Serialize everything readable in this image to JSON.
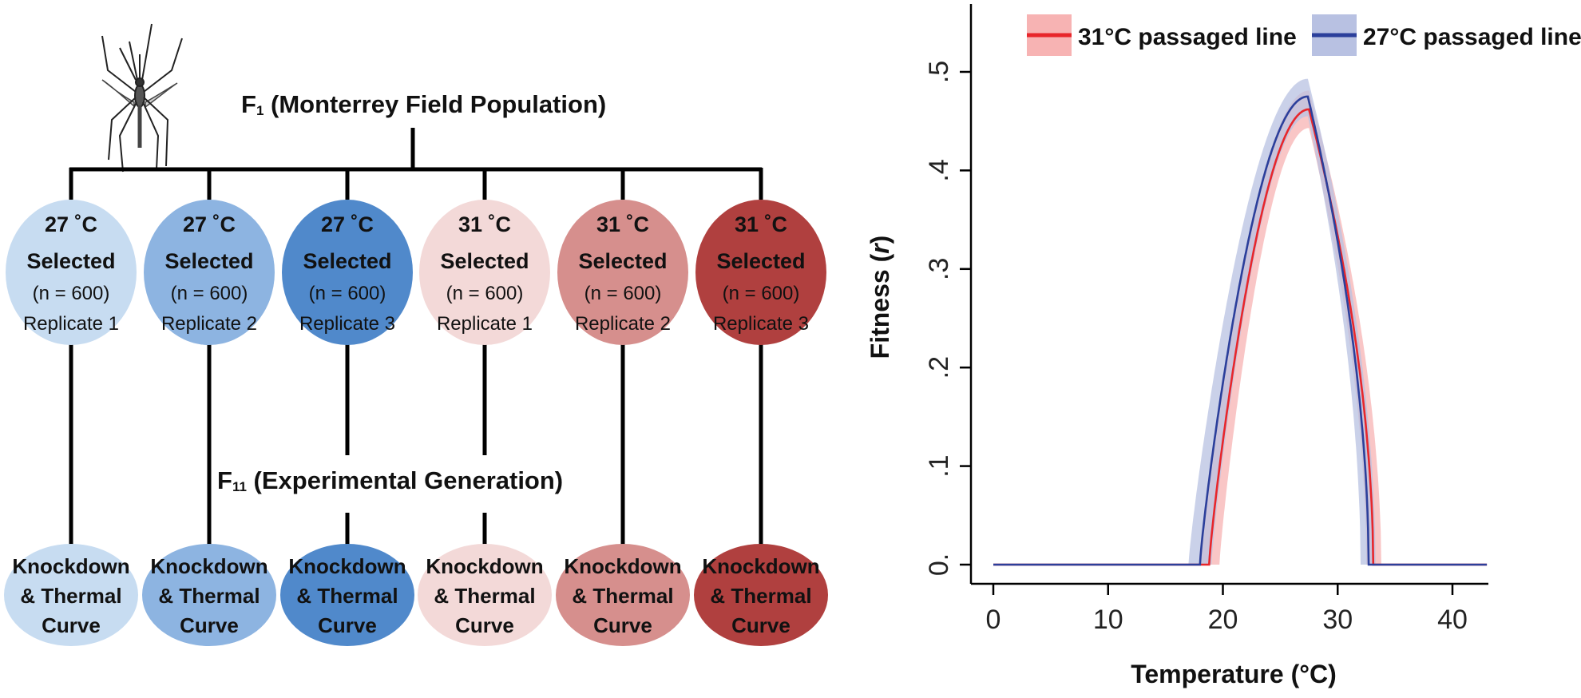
{
  "diagram": {
    "top_label": {
      "main": "F",
      "sub": "1",
      "rest": " (Monterrey Field Population)"
    },
    "mid_label": {
      "main": "F",
      "sub": "11",
      "rest": " (Experimental Generation)"
    },
    "selection_groups": [
      {
        "temp": "27 ˚C",
        "status": "Selected",
        "n": "(n = 600)",
        "replicate": "Replicate 1",
        "color": "#c7dcf1",
        "text_color": "#111111"
      },
      {
        "temp": "27 ˚C",
        "status": "Selected",
        "n": "(n = 600)",
        "replicate": "Replicate 2",
        "color": "#8db4e1",
        "text_color": "#111111"
      },
      {
        "temp": "27 ˚C",
        "status": "Selected",
        "n": "(n = 600)",
        "replicate": "Replicate 3",
        "color": "#5089cb",
        "text_color": "#111111"
      },
      {
        "temp": "31 ˚C",
        "status": "Selected",
        "n": "(n = 600)",
        "replicate": "Replicate 1",
        "color": "#f3d9d8",
        "text_color": "#111111"
      },
      {
        "temp": "31 ˚C",
        "status": "Selected",
        "n": "(n = 600)",
        "replicate": "Replicate 2",
        "color": "#d68f8d",
        "text_color": "#111111"
      },
      {
        "temp": "31 ˚C",
        "status": "Selected",
        "n": "(n = 600)",
        "replicate": "Replicate 3",
        "color": "#b0403f",
        "text_color": "#111111"
      }
    ],
    "outcome_groups": [
      {
        "lines": [
          "Knockdown",
          "& Thermal",
          "Curve"
        ],
        "color": "#c7dcf1"
      },
      {
        "lines": [
          "Knockdown",
          "& Thermal",
          "Curve"
        ],
        "color": "#8db4e1"
      },
      {
        "lines": [
          "Knockdown",
          "& Thermal",
          "Curve"
        ],
        "color": "#5089cb"
      },
      {
        "lines": [
          "Knockdown",
          "& Thermal",
          "Curve"
        ],
        "color": "#f3d9d8"
      },
      {
        "lines": [
          "Knockdown",
          "& Thermal",
          "Curve"
        ],
        "color": "#d68f8d"
      },
      {
        "lines": [
          "Knockdown",
          "& Thermal",
          "Curve"
        ],
        "color": "#b0403f"
      }
    ]
  },
  "chart_data": {
    "type": "line",
    "title": "",
    "xlabel": "Temperature (°C)",
    "ylabel_main": "Fitness (",
    "ylabel_italic": "r",
    "ylabel_close": ")",
    "xlim": [
      -2,
      43
    ],
    "ylim": [
      0,
      0.56
    ],
    "xticks": [
      0,
      10,
      20,
      30,
      40
    ],
    "yticks": [
      0,
      0.1,
      0.2,
      0.3,
      0.4,
      0.5
    ],
    "ytick_labels": [
      "0.",
      ".1",
      ".2",
      ".3",
      ".4",
      ".5"
    ],
    "legend_placement": "top-right",
    "series": [
      {
        "name": "31°C passaged line",
        "color": "#e8262b",
        "band_color": "#f7b3b3",
        "CTmin": 18.8,
        "CTmax": 33.1,
        "peak_x": 27.5,
        "peak_y": 0.462,
        "CTmin_band": [
          17.9,
          19.7
        ],
        "CTmax_band": [
          32.5,
          33.8
        ],
        "peak_band": [
          0.443,
          0.481
        ]
      },
      {
        "name": "27°C passaged line",
        "color": "#2b3f9b",
        "band_color": "#b8c1e2",
        "CTmin": 18.0,
        "CTmax": 32.7,
        "peak_x": 27.4,
        "peak_y": 0.475,
        "CTmin_band": [
          17.0,
          19.0
        ],
        "CTmax_band": [
          32.0,
          33.3
        ],
        "peak_band": [
          0.455,
          0.493
        ]
      }
    ],
    "x_range": [
      0,
      43
    ]
  }
}
